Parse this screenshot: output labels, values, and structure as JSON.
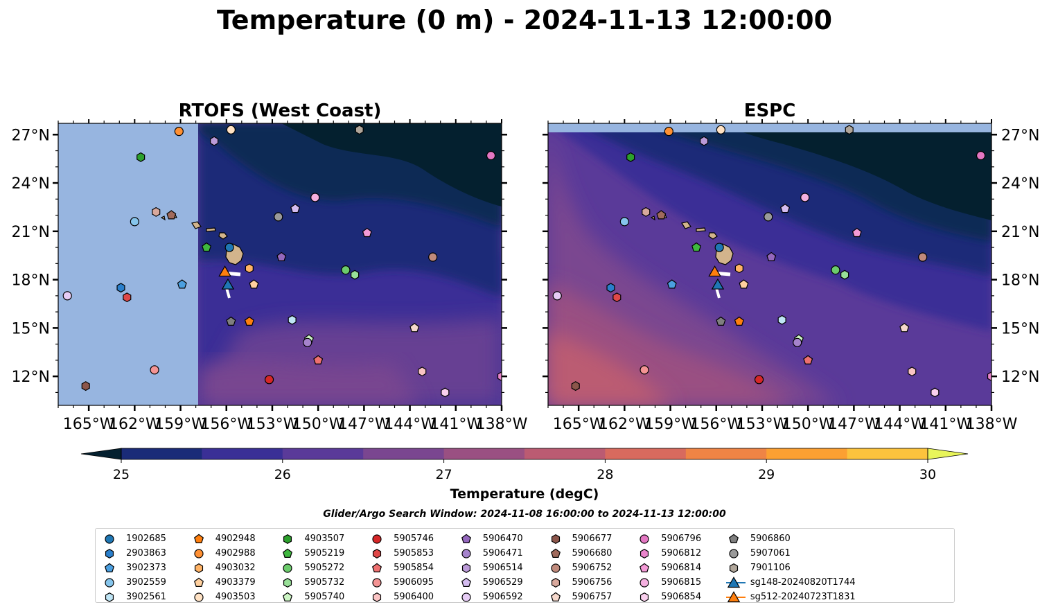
{
  "chart_data": {
    "type": "map",
    "title": "Temperature (0 m) - 2024-11-13 12:00:00",
    "panels": [
      {
        "title": "RTOFS (West Coast)",
        "model": "rtofs",
        "y_tick_side": "left"
      },
      {
        "title": "ESPC",
        "model": "espc",
        "y_tick_side": "right"
      }
    ],
    "lon_range": [
      -167.0,
      -138.0
    ],
    "lat_range": [
      10.2,
      27.7
    ],
    "lon_ticks": [
      -165,
      -162,
      -159,
      -156,
      -153,
      -150,
      -147,
      -144,
      -141,
      -138
    ],
    "lon_tick_labels": [
      "165°W",
      "162°W",
      "159°W",
      "156°W",
      "153°W",
      "150°W",
      "147°W",
      "144°W",
      "141°W",
      "138°W"
    ],
    "lat_ticks": [
      12,
      15,
      18,
      21,
      24,
      27
    ],
    "lat_tick_labels": [
      "12°N",
      "15°N",
      "18°N",
      "21°N",
      "24°N",
      "27°N"
    ],
    "rtofs_domain_west_lon": -157.9,
    "colorbar": {
      "label": "Temperature (degC)",
      "min": 25,
      "max": 30,
      "step": 0.5,
      "ticks": [
        25,
        26,
        27,
        28,
        29,
        30
      ],
      "tick_labels": [
        "25",
        "26",
        "27",
        "28",
        "29",
        "30"
      ],
      "colors": [
        "#04202f",
        "#1a2b78",
        "#3a2f96",
        "#5a3a99",
        "#7a4690",
        "#9a5082",
        "#bb5b72",
        "#d86a5e",
        "#ef8445",
        "#fca032",
        "#fcc33d"
      ],
      "under_color": "#04202f",
      "over_color": "#e8f55a"
    },
    "search_window_text": "Glider/Argo Search Window: 2024-11-08 16:00:00 to 2024-11-13 12:00:00",
    "land_color": "#d2b48c",
    "nodata_color": "#97b5e0",
    "floats": [
      {
        "id": "1902685",
        "marker": "circle",
        "color": "#1f77b4",
        "lon": -155.8,
        "lat": 20.0
      },
      {
        "id": "2903863",
        "marker": "hexagon",
        "color": "#2a7fcc",
        "lon": -162.9,
        "lat": 17.5
      },
      {
        "id": "3902373",
        "marker": "pentagon",
        "color": "#4b9fe0",
        "lon": -158.9,
        "lat": 17.7
      },
      {
        "id": "3902559",
        "marker": "circle",
        "color": "#86c5ec",
        "lon": -162.0,
        "lat": 21.6
      },
      {
        "id": "3902561",
        "marker": "hexagon",
        "color": "#bfe5f5",
        "lon": -151.7,
        "lat": 15.5
      },
      {
        "id": "4902948",
        "marker": "pentagon",
        "color": "#ff7f0e",
        "lon": -154.5,
        "lat": 15.4
      },
      {
        "id": "4902988",
        "marker": "circle",
        "color": "#ff9033",
        "lon": -159.1,
        "lat": 27.2
      },
      {
        "id": "4903032",
        "marker": "hexagon",
        "color": "#ffb366",
        "lon": -154.5,
        "lat": 18.7
      },
      {
        "id": "4903379",
        "marker": "pentagon",
        "color": "#ffd09e",
        "lon": -154.2,
        "lat": 17.7
      },
      {
        "id": "4903503",
        "marker": "circle",
        "color": "#ffe2c4",
        "lon": -155.7,
        "lat": 27.3
      },
      {
        "id": "4903507",
        "marker": "hexagon",
        "color": "#2ca02c",
        "lon": -161.6,
        "lat": 25.6
      },
      {
        "id": "5905219",
        "marker": "pentagon",
        "color": "#3fb83f",
        "lon": -157.3,
        "lat": 20.0
      },
      {
        "id": "5905272",
        "marker": "circle",
        "color": "#6ccc6c",
        "lon": -148.2,
        "lat": 18.6
      },
      {
        "id": "5905732",
        "marker": "hexagon",
        "color": "#98e098",
        "lon": -147.6,
        "lat": 18.3
      },
      {
        "id": "5905740",
        "marker": "pentagon",
        "color": "#ccf5c4",
        "lon": -150.6,
        "lat": 14.3
      },
      {
        "id": "5905746",
        "marker": "circle",
        "color": "#d62728",
        "lon": -153.2,
        "lat": 11.8
      },
      {
        "id": "5905853",
        "marker": "hexagon",
        "color": "#e04848",
        "lon": -162.5,
        "lat": 16.9
      },
      {
        "id": "5905854",
        "marker": "pentagon",
        "color": "#ee7070",
        "lon": -150.0,
        "lat": 13.0
      },
      {
        "id": "5906095",
        "marker": "circle",
        "color": "#f49494",
        "lon": -160.7,
        "lat": 12.4
      },
      {
        "id": "5906400",
        "marker": "hexagon",
        "color": "#fac4c4",
        "lon": -143.2,
        "lat": 12.3
      },
      {
        "id": "5906470",
        "marker": "pentagon",
        "color": "#9467bd",
        "lon": -152.4,
        "lat": 19.4
      },
      {
        "id": "5906471",
        "marker": "circle",
        "color": "#a583cc",
        "lon": -150.7,
        "lat": 14.1
      },
      {
        "id": "5906514",
        "marker": "hexagon",
        "color": "#bb9ad8",
        "lon": -156.8,
        "lat": 26.6
      },
      {
        "id": "5906529",
        "marker": "pentagon",
        "color": "#d4bcf0",
        "lon": -151.5,
        "lat": 22.4
      },
      {
        "id": "5906592",
        "marker": "circle",
        "color": "#e6ccf5",
        "lon": -166.4,
        "lat": 17.0
      },
      {
        "id": "5906677",
        "marker": "hexagon",
        "color": "#8c564b",
        "lon": -165.2,
        "lat": 11.4
      },
      {
        "id": "5906680",
        "marker": "pentagon",
        "color": "#a06a5c",
        "lon": -159.6,
        "lat": 22.0
      },
      {
        "id": "5906752",
        "marker": "circle",
        "color": "#c08a7c",
        "lon": -142.5,
        "lat": 19.4
      },
      {
        "id": "5906756",
        "marker": "hexagon",
        "color": "#d8a89c",
        "lon": -160.6,
        "lat": 22.2
      },
      {
        "id": "5906757",
        "marker": "pentagon",
        "color": "#f5d8cc",
        "lon": -143.7,
        "lat": 15.0
      },
      {
        "id": "5906796",
        "marker": "circle",
        "color": "#e377c2",
        "lon": -138.7,
        "lat": 25.7
      },
      {
        "id": "5906812",
        "marker": "hexagon",
        "color": "#ea85cc",
        "lon": -138.0,
        "lat": 12.0
      },
      {
        "id": "5906814",
        "marker": "pentagon",
        "color": "#f39ad6",
        "lon": -146.8,
        "lat": 20.9
      },
      {
        "id": "5906815",
        "marker": "circle",
        "color": "#f5b0e0",
        "lon": -150.2,
        "lat": 23.1
      },
      {
        "id": "5906854",
        "marker": "hexagon",
        "color": "#fad0ee",
        "lon": -141.7,
        "lat": 11.0
      },
      {
        "id": "5906860",
        "marker": "pentagon",
        "color": "#7f7f7f",
        "lon": -155.7,
        "lat": 15.4
      },
      {
        "id": "5907061",
        "marker": "circle",
        "color": "#9a9a9a",
        "lon": -152.6,
        "lat": 21.9
      },
      {
        "id": "7901106",
        "marker": "hexagon",
        "color": "#b0a69a",
        "lon": -147.3,
        "lat": 27.3
      }
    ],
    "gliders": [
      {
        "id": "sg148-20240820T1744",
        "marker": "triangle",
        "color": "#1f77b4",
        "lon": -155.9,
        "lat": 17.7
      },
      {
        "id": "sg512-20240723T1831",
        "marker": "triangle",
        "color": "#ff7f0e",
        "lon": -156.1,
        "lat": 18.5
      }
    ]
  }
}
